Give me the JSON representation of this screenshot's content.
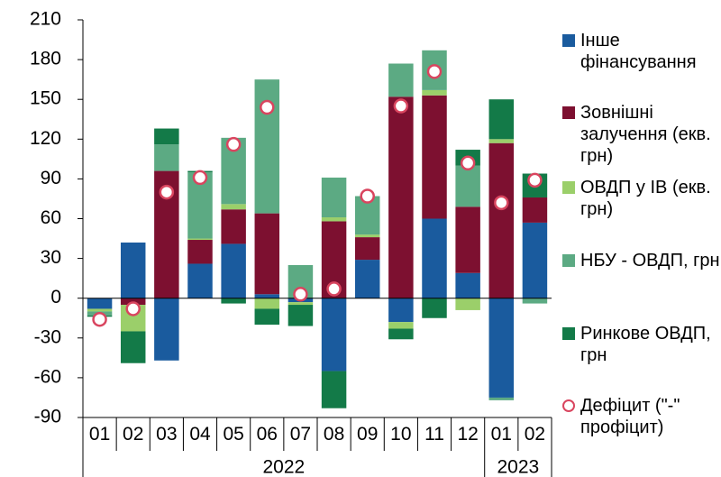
{
  "chart_data": {
    "type": "bar",
    "stacked": true,
    "categories": [
      "01",
      "02",
      "03",
      "04",
      "05",
      "06",
      "07",
      "08",
      "09",
      "10",
      "11",
      "12",
      "01",
      "02"
    ],
    "groups": [
      {
        "label": "2022",
        "size": 12
      },
      {
        "label": "2023",
        "size": 2
      }
    ],
    "series": [
      {
        "name": "Інше фінансування",
        "color": "#1a5b9e",
        "values": [
          -8,
          42,
          -47,
          26,
          41,
          3,
          -3,
          -55,
          29,
          -18,
          60,
          19,
          -75,
          57
        ]
      },
      {
        "name": "Зовнішні залучення (екв. грн)",
        "color": "#7d1030",
        "values": [
          0,
          -5,
          96,
          18,
          26,
          61,
          0,
          58,
          17,
          152,
          93,
          50,
          117,
          19
        ]
      },
      {
        "name": "ОВДП у ІВ (екв. грн)",
        "color": "#9bcf6a",
        "values": [
          -2,
          -20,
          0,
          1,
          4,
          -8,
          -2,
          3,
          2,
          -5,
          4,
          -9,
          3,
          0
        ]
      },
      {
        "name": "НБУ - ОВДП, грн",
        "color": "#5caa83",
        "values": [
          -3,
          0,
          20,
          50,
          50,
          101,
          25,
          30,
          29,
          25,
          30,
          31,
          -2,
          -4
        ]
      },
      {
        "name": "Ринкове ОВДП, грн",
        "color": "#137a48",
        "values": [
          -1,
          -24,
          12,
          1,
          -4,
          -12,
          -16,
          -28,
          0,
          -8,
          -15,
          12,
          30,
          18
        ]
      }
    ],
    "overlay": {
      "type": "scatter",
      "name": "Дефіцит (\"-\" профіцит)",
      "color": "#d9455f",
      "values": [
        -16,
        -8,
        80,
        91,
        116,
        144,
        3,
        7,
        77,
        145,
        171,
        102,
        72,
        89
      ]
    },
    "ylim": [
      -90,
      210
    ],
    "yticks": [
      -90,
      -60,
      -30,
      0,
      30,
      60,
      90,
      120,
      150,
      180,
      210
    ]
  }
}
